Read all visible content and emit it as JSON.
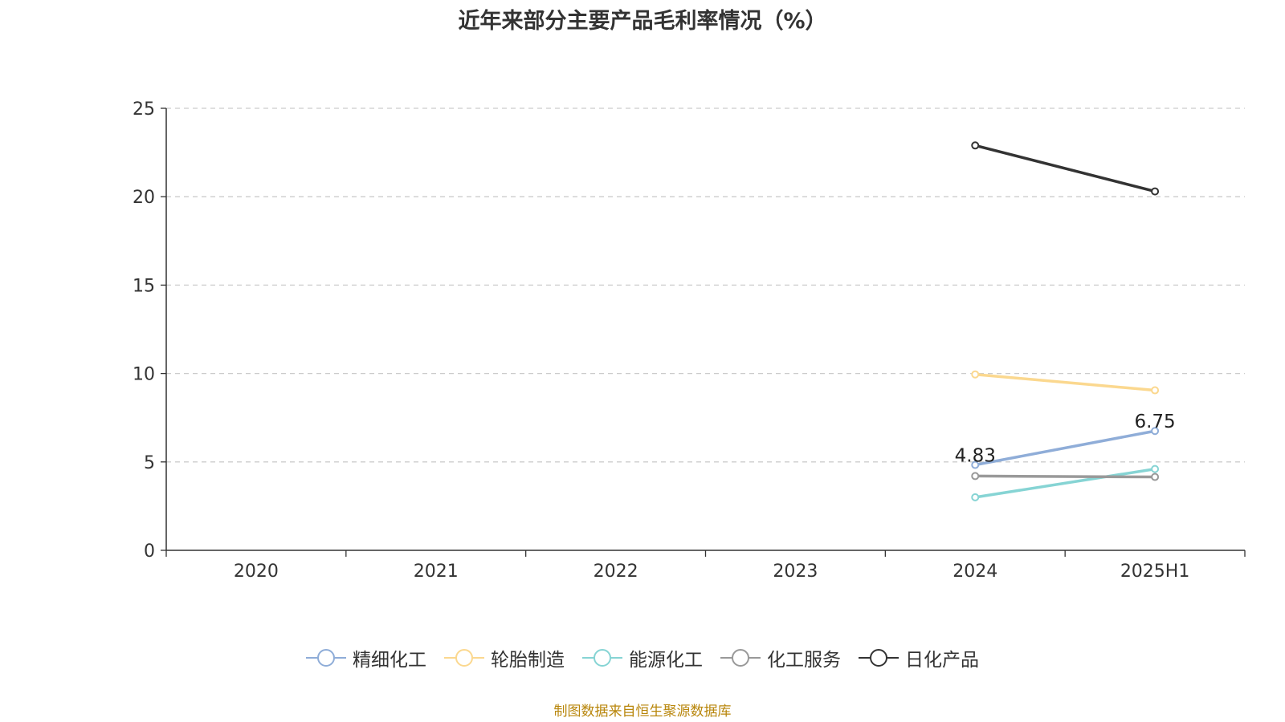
{
  "title": "近年来部分主要产品毛利率情况（%）",
  "source": "制图数据来自恒生聚源数据库",
  "chart_data": {
    "type": "line",
    "title": "近年来部分主要产品毛利率情况（%）",
    "categories": [
      "2020",
      "2021",
      "2022",
      "2023",
      "2024",
      "2025H1"
    ],
    "ylim": [
      0,
      25
    ],
    "yticks": [
      0,
      5,
      10,
      15,
      20,
      25
    ],
    "grid": true,
    "legend_position": "bottom",
    "series": [
      {
        "name": "精细化工",
        "color": "#8fadd8",
        "values": [
          null,
          null,
          null,
          null,
          4.83,
          6.75
        ],
        "labels": [
          null,
          null,
          null,
          null,
          "4.83",
          "6.75"
        ]
      },
      {
        "name": "轮胎制造",
        "color": "#fbd88f",
        "values": [
          null,
          null,
          null,
          null,
          9.95,
          9.05
        ]
      },
      {
        "name": "能源化工",
        "color": "#86d4d4",
        "values": [
          null,
          null,
          null,
          null,
          3.0,
          4.6
        ]
      },
      {
        "name": "化工服务",
        "color": "#999999",
        "values": [
          null,
          null,
          null,
          null,
          4.2,
          4.15
        ]
      },
      {
        "name": "日化产品",
        "color": "#333333",
        "values": [
          null,
          null,
          null,
          null,
          22.9,
          20.3
        ]
      }
    ]
  }
}
